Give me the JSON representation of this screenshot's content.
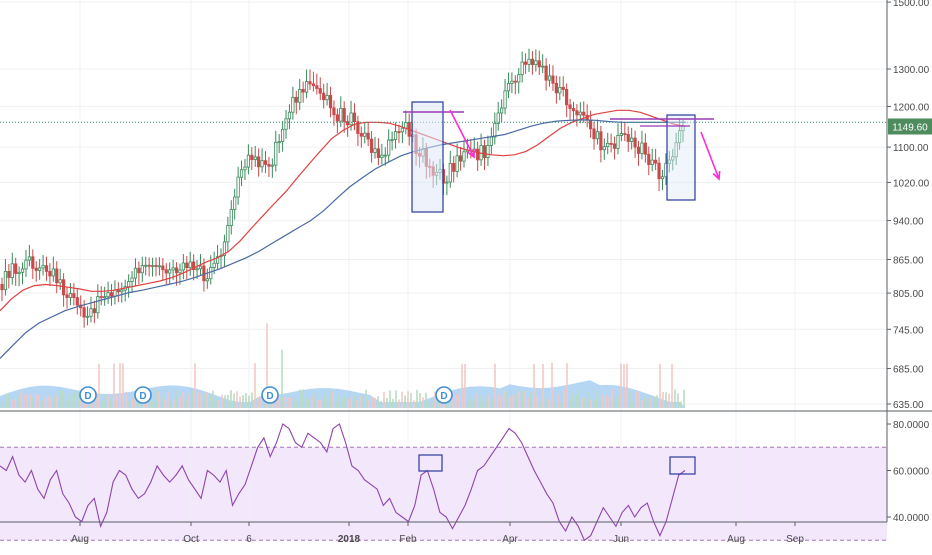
{
  "chart_data": [
    {
      "type": "candlestick",
      "y_scale": "log",
      "ylim": [
        615,
        1540
      ],
      "x_ticks": [
        "Aug",
        "Oct",
        "6",
        "2018",
        "Feb",
        "Apr",
        "Jun",
        "Aug",
        "Sep"
      ],
      "y_ticks": [
        635,
        685,
        745,
        805,
        865,
        940,
        1020,
        1100,
        1200,
        1300,
        1500
      ],
      "y_tick_labels": [
        "635.00",
        "685.00",
        "745.00",
        "805.00",
        "865.00",
        "940.00",
        "1020.00",
        "1100.00",
        "1200.00",
        "1300.00",
        "1500.00"
      ],
      "last_price": 1149.6,
      "last_price_label": "1149.60",
      "price_line": 1160,
      "close_path": [
        [
          "Jul",
          820
        ],
        [
          "Jul",
          850
        ],
        [
          "Jul",
          860
        ],
        [
          "Jul",
          855
        ],
        [
          "Jul",
          845
        ],
        [
          "Aug",
          830
        ],
        [
          "Aug",
          805
        ],
        [
          "Aug",
          785
        ],
        [
          "Aug",
          760
        ],
        [
          "Aug",
          790
        ],
        [
          "Sep",
          800
        ],
        [
          "Sep",
          815
        ],
        [
          "Sep",
          840
        ],
        [
          "Sep",
          855
        ],
        [
          "Sep",
          860
        ],
        [
          "Oct",
          850
        ],
        [
          "Oct",
          855
        ],
        [
          "Oct",
          860
        ],
        [
          "Oct",
          850
        ],
        [
          "Oct",
          825
        ],
        [
          "Nov",
          860
        ],
        [
          "Nov",
          940
        ],
        [
          "Nov",
          1040
        ],
        [
          "Nov",
          1080
        ],
        [
          "Nov",
          1050
        ],
        [
          "Dec",
          1070
        ],
        [
          "Dec",
          1150
        ],
        [
          "Dec",
          1220
        ],
        [
          "Dec",
          1250
        ],
        [
          "Dec",
          1230
        ],
        [
          "Jan",
          1210
        ],
        [
          "Jan",
          1180
        ],
        [
          "Jan",
          1170
        ],
        [
          "Jan",
          1150
        ],
        [
          "Feb",
          1100
        ],
        [
          "Feb",
          1060
        ],
        [
          "Feb",
          1120
        ],
        [
          "Feb",
          1160
        ],
        [
          "Feb",
          1110
        ],
        [
          "Mar",
          1080
        ],
        [
          "Mar",
          1050
        ],
        [
          "Mar",
          1030
        ],
        [
          "Mar",
          1060
        ],
        [
          "Mar",
          1080
        ],
        [
          "Apr",
          1080
        ],
        [
          "Apr",
          1100
        ],
        [
          "Apr",
          1180
        ],
        [
          "Apr",
          1260
        ],
        [
          "Apr",
          1310
        ],
        [
          "May",
          1320
        ],
        [
          "May",
          1290
        ],
        [
          "May",
          1250
        ],
        [
          "May",
          1230
        ],
        [
          "May",
          1200
        ],
        [
          "Jun",
          1160
        ],
        [
          "Jun",
          1120
        ],
        [
          "Jun",
          1100
        ],
        [
          "Jun",
          1110
        ],
        [
          "Jun",
          1120
        ],
        [
          "Jul",
          1100
        ],
        [
          "Jul",
          1060
        ],
        [
          "Jul",
          1040
        ],
        [
          "Jul",
          1080
        ],
        [
          "Jul",
          1149.6
        ]
      ],
      "series": [
        {
          "kind": "moving-average",
          "color": "#e04040",
          "values": [
            775,
            795,
            810,
            818,
            820,
            818,
            815,
            812,
            808,
            808,
            810,
            814,
            818,
            822,
            826,
            832,
            840,
            850,
            860,
            868,
            880,
            900,
            925,
            950,
            975,
            1000,
            1030,
            1060,
            1090,
            1120,
            1140,
            1155,
            1160,
            1160,
            1158,
            1150,
            1140,
            1130,
            1120,
            1110,
            1100,
            1092,
            1086,
            1082,
            1080,
            1082,
            1090,
            1105,
            1125,
            1145,
            1160,
            1170,
            1180,
            1185,
            1190,
            1190,
            1185,
            1175,
            1165,
            1155,
            1150
          ]
        },
        {
          "kind": "moving-average",
          "color": "#4a6aa5",
          "values": [
            700,
            720,
            740,
            755,
            765,
            775,
            782,
            788,
            794,
            800,
            806,
            810,
            815,
            820,
            825,
            832,
            840,
            848,
            858,
            868,
            880,
            895,
            910,
            925,
            940,
            960,
            985,
            1010,
            1030,
            1050,
            1065,
            1080,
            1090,
            1098,
            1105,
            1110,
            1115,
            1120,
            1125,
            1130,
            1140,
            1150,
            1158,
            1163,
            1165,
            1166,
            1165,
            1162,
            1160,
            1160,
            1160,
            1160,
            1160,
            1160
          ]
        }
      ],
      "volume": {
        "color": "#9cc9ef",
        "dividend_marker": "D",
        "dividend_count": 4
      }
    },
    {
      "type": "line",
      "name": "rsi",
      "color": "#8e44ad",
      "ylim": [
        28,
        84
      ],
      "y_ticks": [
        40,
        60,
        80
      ],
      "y_tick_labels": [
        "40.0000",
        "60.0000",
        "80.0000"
      ],
      "band": [
        30,
        70
      ],
      "values": [
        62,
        60,
        66,
        58,
        55,
        60,
        52,
        48,
        56,
        60,
        50,
        46,
        40,
        38,
        45,
        48,
        36,
        42,
        55,
        60,
        58,
        52,
        48,
        50,
        55,
        62,
        58,
        55,
        58,
        62,
        56,
        52,
        48,
        60,
        58,
        55,
        60,
        45,
        50,
        54,
        62,
        70,
        74,
        66,
        72,
        80,
        78,
        72,
        70,
        76,
        74,
        72,
        68,
        78,
        80,
        72,
        62,
        60,
        56,
        54,
        52,
        45,
        48,
        42,
        40,
        38,
        45,
        58,
        60,
        52,
        42,
        40,
        35,
        40,
        45,
        52,
        60,
        62,
        66,
        70,
        74,
        78,
        76,
        72,
        66,
        60,
        55,
        50,
        46,
        38,
        34,
        40,
        36,
        30,
        32,
        38,
        44,
        40,
        36,
        42,
        45,
        40,
        44,
        46,
        38,
        32,
        38,
        48,
        58,
        60
      ]
    }
  ]
}
